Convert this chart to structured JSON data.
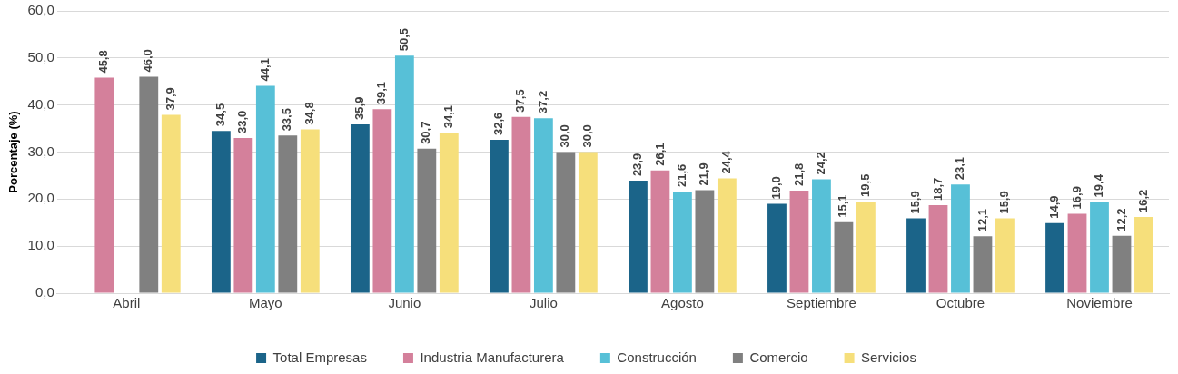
{
  "chart_data": {
    "type": "bar",
    "ylabel": "Porcentaje (%)",
    "categories": [
      "Abril",
      "Mayo",
      "Junio",
      "Julio",
      "Agosto",
      "Septiembre",
      "Octubre",
      "Noviembre"
    ],
    "series": [
      {
        "name": "Total Empresas",
        "color": "#1b6489",
        "values": [
          null,
          34.5,
          35.9,
          32.6,
          23.9,
          19.0,
          15.9,
          14.9
        ],
        "value_labels": [
          null,
          "34,5",
          "35,9",
          "32,6",
          "23,9",
          "19,0",
          "15,9",
          "14,9"
        ]
      },
      {
        "name": "Industria Manufacturera",
        "color": "#d4809b",
        "values": [
          45.8,
          33.0,
          39.1,
          37.5,
          26.1,
          21.8,
          18.7,
          16.9
        ],
        "value_labels": [
          "45,8",
          "33,0",
          "39,1",
          "37,5",
          "26,1",
          "21,8",
          "18,7",
          "16,9"
        ]
      },
      {
        "name": "Construcción",
        "color": "#57c0d7",
        "values": [
          null,
          44.1,
          50.5,
          37.2,
          21.6,
          24.2,
          23.1,
          19.4
        ],
        "value_labels": [
          null,
          "44,1",
          "50,5",
          "37,2",
          "21,6",
          "24,2",
          "23,1",
          "19,4"
        ]
      },
      {
        "name": "Comercio",
        "color": "#808080",
        "values": [
          46.0,
          33.5,
          30.7,
          30.0,
          21.9,
          15.1,
          12.1,
          12.2
        ],
        "value_labels": [
          "46,0",
          "33,5",
          "30,7",
          "30,0",
          "21,9",
          "15,1",
          "12,1",
          "12,2"
        ]
      },
      {
        "name": "Servicios",
        "color": "#f6df7b",
        "values": [
          37.9,
          34.8,
          34.1,
          30.0,
          24.4,
          19.5,
          15.9,
          16.2
        ],
        "value_labels": [
          "37,9",
          "34,8",
          "34,1",
          "30,0",
          "24,4",
          "19,5",
          "15,9",
          "16,2"
        ]
      }
    ],
    "ylim": [
      0,
      60
    ],
    "yticks": [
      {
        "value": 0,
        "label": "0,0"
      },
      {
        "value": 10,
        "label": "10,0"
      },
      {
        "value": 20,
        "label": "20,0"
      },
      {
        "value": 30,
        "label": "30,0"
      },
      {
        "value": 40,
        "label": "40,0"
      },
      {
        "value": 50,
        "label": "50,0"
      },
      {
        "value": 60,
        "label": "60,0"
      }
    ],
    "grid": "y",
    "legend": "bottom"
  }
}
